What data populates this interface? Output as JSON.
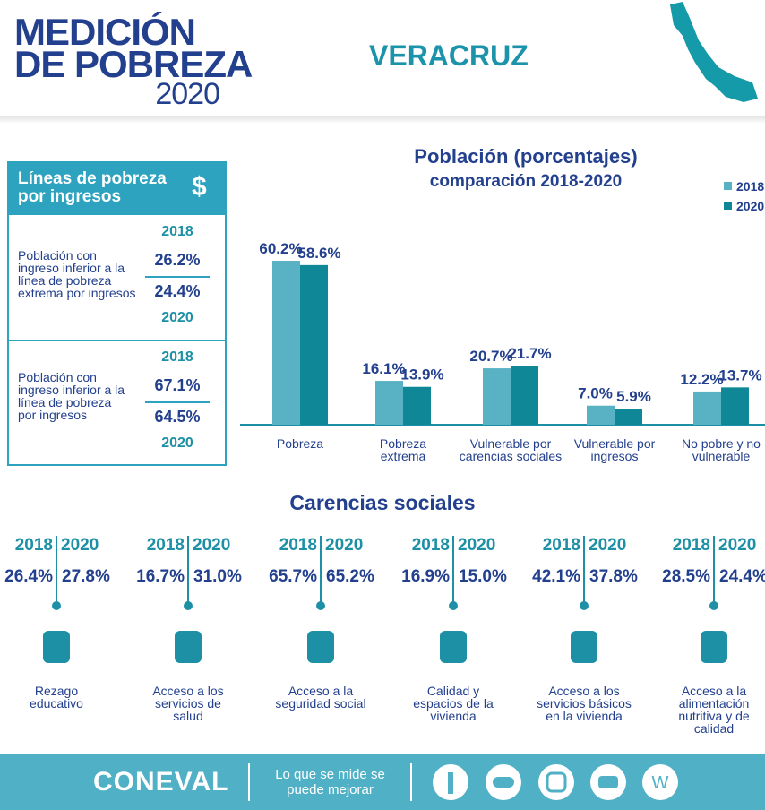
{
  "header": {
    "title_line1": "MEDICIÓN",
    "title_line2": "DE POBREZA",
    "year": "2020",
    "state": "VERACRUZ"
  },
  "poverty_lines": {
    "title": "Líneas de pobreza por ingresos",
    "symbol": "$",
    "blocks": [
      {
        "label": "Población con ingreso inferior a la línea de pobreza extrema por ingresos",
        "year_a": "2018",
        "value_a": "26.2%",
        "value_b": "24.4%",
        "year_b": "2020"
      },
      {
        "label": "Población con ingreso inferior a la línea de pobreza por ingresos",
        "year_a": "2018",
        "value_a": "67.1%",
        "value_b": "64.5%",
        "year_b": "2020"
      }
    ]
  },
  "chart_data": {
    "type": "bar",
    "title": "Población (porcentajes)",
    "subtitle": "comparación 2018-2020",
    "categories": [
      "Pobreza",
      "Pobreza extrema",
      "Vulnerable por carencias sociales",
      "Vulnerable por ingresos",
      "No pobre y no vulnerable"
    ],
    "series": [
      {
        "name": "2018",
        "color": "#58b2c3",
        "values": [
          60.2,
          16.1,
          20.7,
          7.0,
          12.2
        ],
        "value_labels": [
          "60.2%",
          "16.1%",
          "20.7%",
          "7.0%",
          "12.2%"
        ]
      },
      {
        "name": "2020",
        "color": "#0f8797",
        "values": [
          58.6,
          13.9,
          21.7,
          5.9,
          13.7
        ],
        "value_labels": [
          "58.6%",
          "13.9%",
          "21.7%",
          "5.9%",
          "13.7%"
        ]
      }
    ],
    "legend": "top-right"
  },
  "carencias": {
    "title": "Carencias sociales",
    "years": [
      "2018",
      "2020"
    ],
    "items": [
      {
        "v2018": "26.4%",
        "v2020": "27.8%",
        "label": "Rezago educativo"
      },
      {
        "v2018": "16.7%",
        "v2020": "31.0%",
        "label": "Acceso a los servicios de salud"
      },
      {
        "v2018": "65.7%",
        "v2020": "65.2%",
        "label": "Acceso a la seguridad social"
      },
      {
        "v2018": "16.9%",
        "v2020": "15.0%",
        "label": "Calidad y espacios de la vivienda"
      },
      {
        "v2018": "42.1%",
        "v2020": "37.8%",
        "label": "Acceso a los servicios básicos en la vivienda"
      },
      {
        "v2018": "28.5%",
        "v2020": "24.4%",
        "label": "Acceso a la alimentación nutritiva y de calidad"
      }
    ]
  },
  "footer": {
    "brand": "CONEVAL",
    "slogan": "Lo que se mide se puede mejorar"
  }
}
